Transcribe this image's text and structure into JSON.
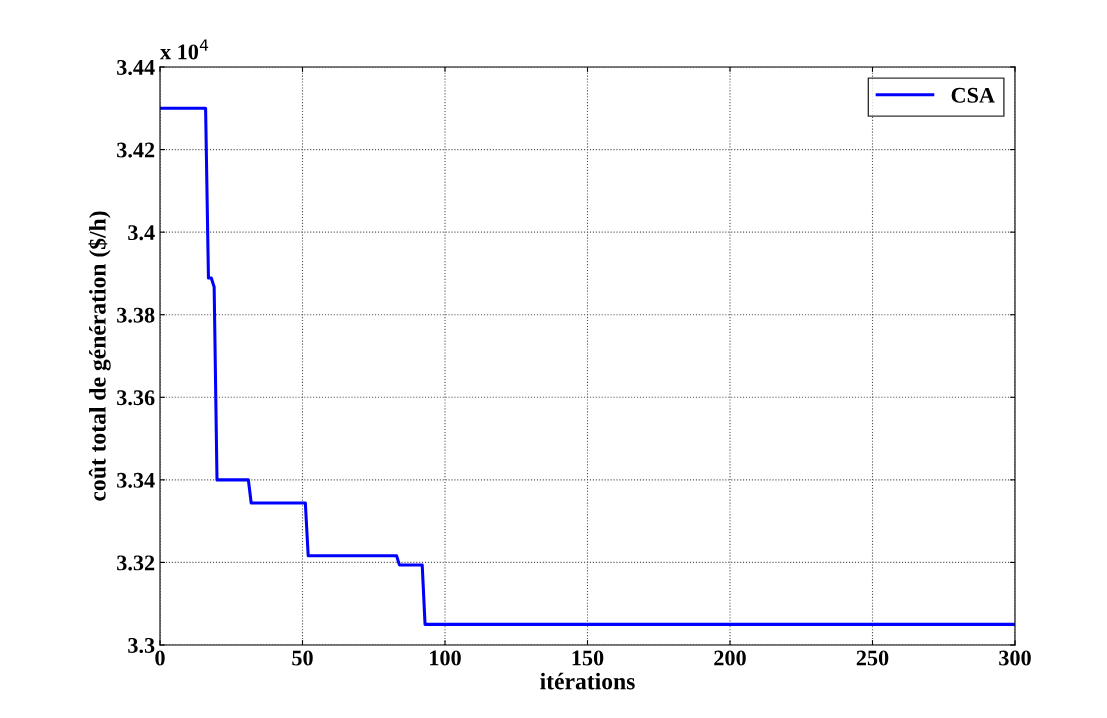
{
  "chart_data": {
    "type": "line",
    "xlabel": "itérations",
    "ylabel": "coût total de génération ($/h)",
    "annotations": [
      "x 10$^{4}$"
    ],
    "x": [
      0,
      16,
      17,
      18,
      19,
      20,
      31,
      32,
      51,
      52,
      83,
      84,
      92,
      93,
      300
    ],
    "series": [
      {
        "name": "CSA",
        "color": "#0000ff",
        "values": [
          3.43,
          3.43,
          3.3889,
          3.3889,
          3.3867,
          3.34,
          3.34,
          3.3344,
          3.3344,
          3.3216,
          3.3216,
          3.3194,
          3.3194,
          3.305,
          3.305
        ]
      }
    ],
    "xlim": [
      0,
      300
    ],
    "xticks": [
      0,
      50,
      100,
      150,
      200,
      250,
      300
    ],
    "ylim": [
      3.3,
      3.44
    ],
    "yticks": [
      3.3,
      3.32,
      3.34,
      3.36,
      3.38,
      3.4,
      3.42,
      3.44
    ],
    "grid": true,
    "legend": "top right",
    "line_style": "solid",
    "marker": "none"
  }
}
